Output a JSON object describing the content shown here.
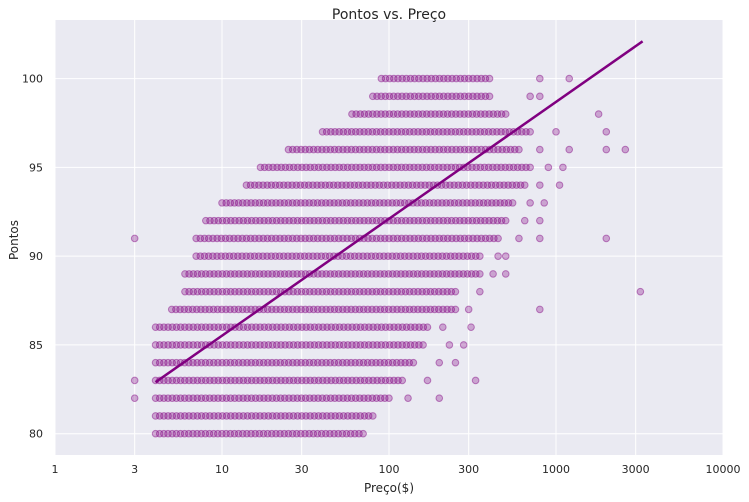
{
  "chart_data": {
    "type": "scatter",
    "title": "Pontos vs. Preço",
    "xlabel": "Preço($)",
    "ylabel": "Pontos",
    "x_scale": "log",
    "xlim": [
      1,
      10000
    ],
    "ylim": [
      78.8,
      103.3
    ],
    "x_ticks": [
      1,
      3,
      10,
      30,
      100,
      300,
      1000,
      3000,
      10000
    ],
    "x_tick_labels": [
      "1",
      "3",
      "10",
      "30",
      "100",
      "300",
      "1000",
      "3000",
      "10000"
    ],
    "y_ticks": [
      80,
      85,
      90,
      95,
      100
    ],
    "y_tick_labels": [
      "80",
      "85",
      "90",
      "95",
      "100"
    ],
    "grid": true,
    "point_color": "#800080",
    "point_alpha": 0.3,
    "regression_line": {
      "color": "#800080",
      "x": [
        4,
        3300
      ],
      "y": [
        82.9,
        102.1
      ]
    },
    "score_price_ranges": [
      {
        "points": 80,
        "dense": [
          4,
          70
        ]
      },
      {
        "points": 81,
        "dense": [
          4,
          80
        ]
      },
      {
        "points": 82,
        "dense": [
          4,
          100
        ],
        "outliers": [
          3,
          130,
          200
        ]
      },
      {
        "points": 83,
        "dense": [
          4,
          120
        ],
        "outliers": [
          3,
          170,
          330
        ]
      },
      {
        "points": 84,
        "dense": [
          4,
          140
        ],
        "outliers": [
          200,
          250
        ]
      },
      {
        "points": 85,
        "dense": [
          4,
          160
        ],
        "outliers": [
          230,
          280
        ]
      },
      {
        "points": 86,
        "dense": [
          4,
          170
        ],
        "outliers": [
          210,
          310
        ]
      },
      {
        "points": 87,
        "dense": [
          5,
          250
        ],
        "outliers": [
          300,
          800
        ]
      },
      {
        "points": 88,
        "dense": [
          6,
          250
        ],
        "outliers": [
          350,
          3200
        ]
      },
      {
        "points": 89,
        "dense": [
          6,
          350
        ],
        "outliers": [
          420,
          500
        ]
      },
      {
        "points": 90,
        "dense": [
          7,
          350
        ],
        "outliers": [
          450,
          500
        ]
      },
      {
        "points": 91,
        "dense": [
          7,
          450
        ],
        "outliers": [
          3,
          600,
          800,
          2000
        ]
      },
      {
        "points": 92,
        "dense": [
          8,
          500
        ],
        "outliers": [
          650,
          800
        ]
      },
      {
        "points": 93,
        "dense": [
          10,
          550
        ],
        "outliers": [
          700,
          850
        ]
      },
      {
        "points": 94,
        "dense": [
          14,
          650
        ],
        "outliers": [
          800,
          1050
        ]
      },
      {
        "points": 95,
        "dense": [
          17,
          700
        ],
        "outliers": [
          900,
          1100
        ]
      },
      {
        "points": 96,
        "dense": [
          25,
          600
        ],
        "outliers": [
          800,
          1200,
          2000,
          2600
        ]
      },
      {
        "points": 97,
        "dense": [
          40,
          700
        ],
        "outliers": [
          1000,
          2000
        ]
      },
      {
        "points": 98,
        "dense": [
          60,
          500
        ],
        "outliers": [
          1800
        ]
      },
      {
        "points": 99,
        "dense": [
          80,
          400
        ],
        "outliers": [
          700,
          800
        ]
      },
      {
        "points": 100,
        "dense": [
          90,
          400
        ],
        "outliers": [
          800,
          1200
        ]
      }
    ]
  }
}
